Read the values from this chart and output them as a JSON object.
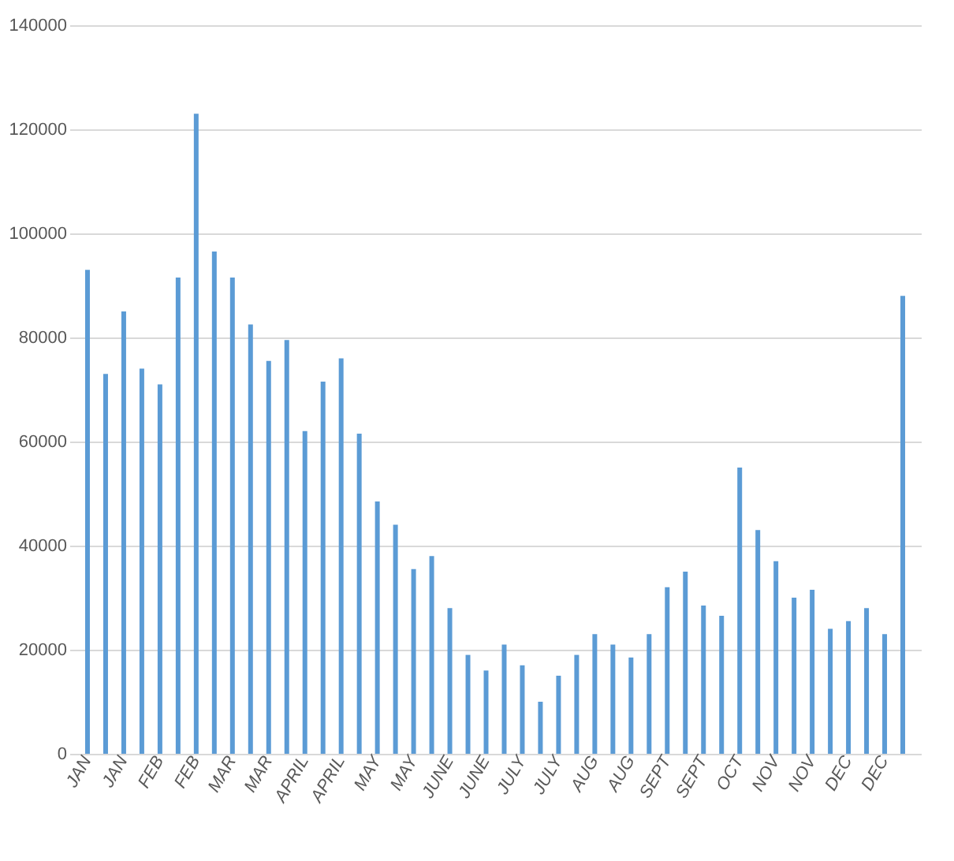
{
  "chart_data": {
    "type": "bar",
    "categories": [
      "JAN",
      null,
      "JAN",
      null,
      "FEB",
      null,
      "FEB",
      null,
      "MAR",
      null,
      "MAR",
      null,
      "APRIL",
      null,
      "APRIL",
      null,
      "MAY",
      null,
      "MAY",
      null,
      "JUNE",
      null,
      "JUNE",
      null,
      "JULY",
      null,
      "JULY",
      null,
      "AUG",
      null,
      "AUG",
      null,
      "SEPT",
      null,
      "SEPT",
      null,
      "OCT",
      null,
      "NOV",
      null,
      "NOV",
      null,
      "DEC",
      null,
      "DEC",
      null
    ],
    "values": [
      93000,
      73000,
      85000,
      74000,
      71000,
      91500,
      123000,
      96500,
      91500,
      82500,
      75500,
      79500,
      62000,
      71500,
      76000,
      61500,
      48500,
      44000,
      35500,
      38000,
      28000,
      19000,
      16000,
      21000,
      17000,
      10000,
      15000,
      19000,
      23000,
      21000,
      18500,
      23000,
      32000,
      35000,
      28500,
      26500,
      55000,
      43000,
      37000,
      30000,
      31500,
      24000,
      25500,
      28000,
      23000,
      88000
    ],
    "color": "#5b9bd5",
    "ylim": [
      0,
      140000
    ],
    "yticks": [
      0,
      20000,
      40000,
      60000,
      80000,
      100000,
      120000,
      140000
    ],
    "grid": "y"
  }
}
